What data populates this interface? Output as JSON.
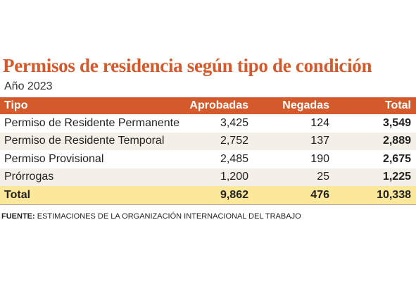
{
  "header": {
    "title": "Permisos de residencia según tipo de condición",
    "subtitle": "Año 2023"
  },
  "table": {
    "columns": [
      "Tipo",
      "Aprobadas",
      "Negadas",
      "Total"
    ],
    "rows": [
      [
        "Permiso de Residente Permanente",
        "3,425",
        "124",
        "3,549"
      ],
      [
        "Permiso de Residente Temporal",
        "2,752",
        "137",
        "2,889"
      ],
      [
        "Permiso Provisional",
        "2,485",
        "190",
        "2,675"
      ],
      [
        "Prórrogas",
        "1,200",
        "25",
        "1,225"
      ]
    ],
    "total": [
      "Total",
      "9,862",
      "476",
      "10,338"
    ]
  },
  "source": {
    "label": "FUENTE:",
    "text": "ESTIMACIONES DE LA ORGANIZACIÓN INTERNACIONAL DEL TRABAJO"
  }
}
